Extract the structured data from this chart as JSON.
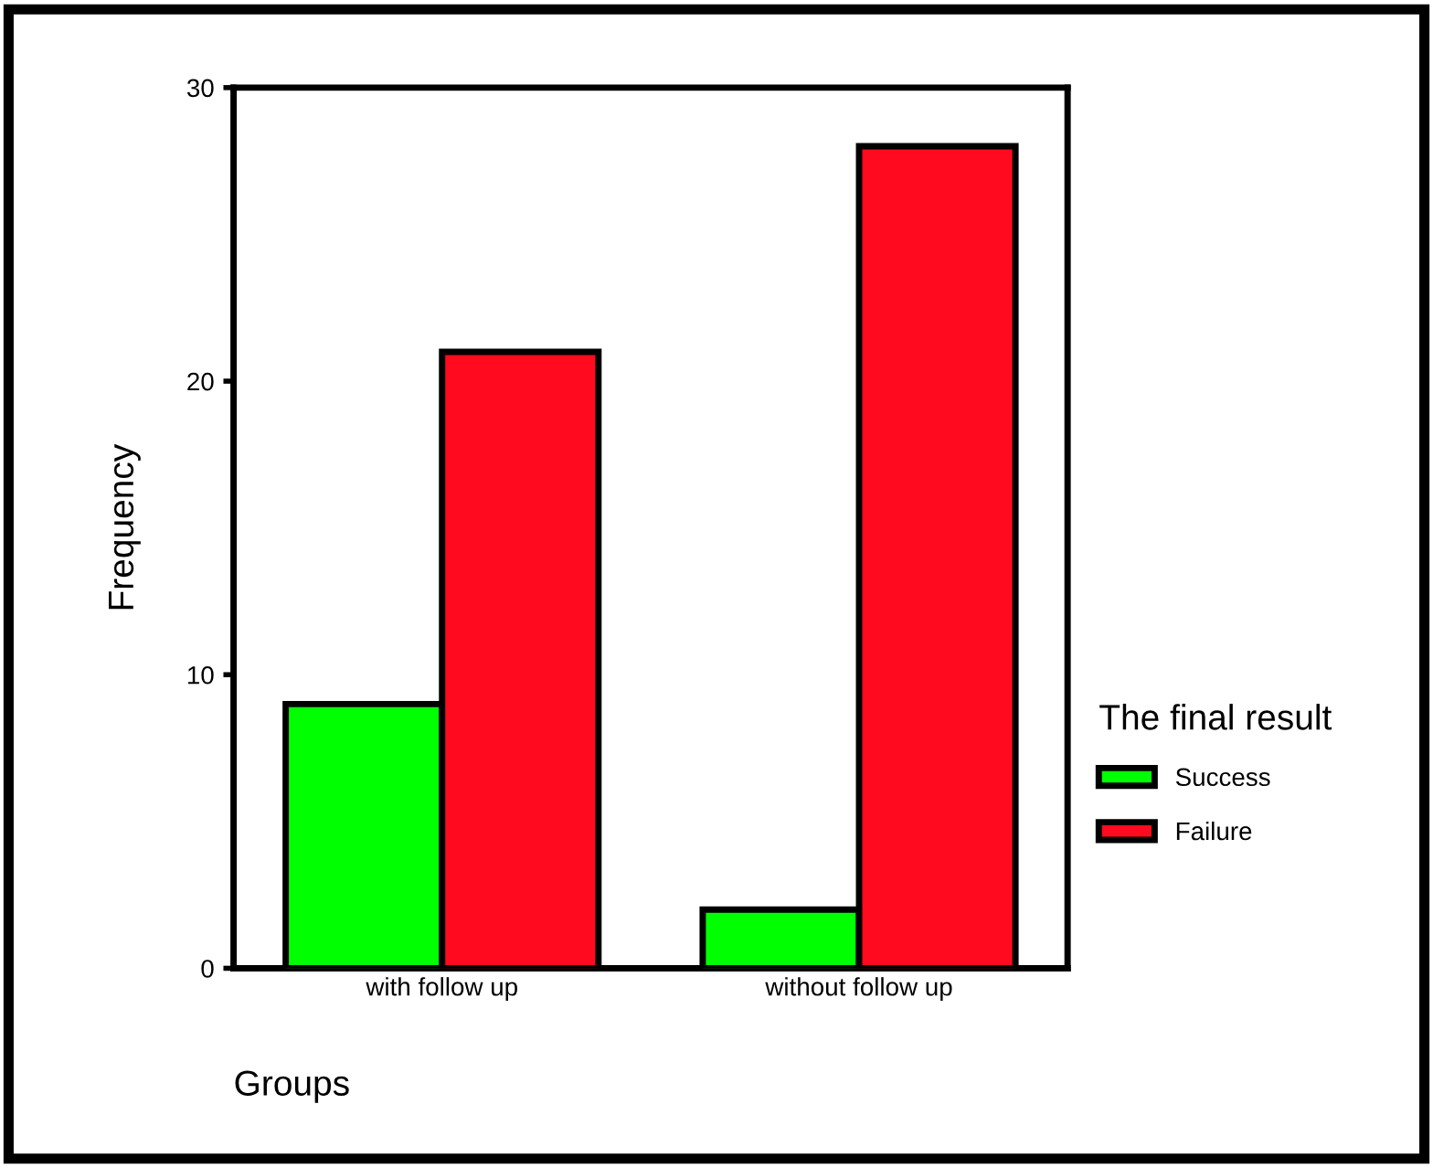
{
  "chart_data": {
    "type": "bar",
    "xlabel": "Groups",
    "ylabel": "Frequency",
    "legend_title": "The final result",
    "categories": [
      "with follow up",
      "without follow up"
    ],
    "series": [
      {
        "name": "Success",
        "color": "#00ff00",
        "values": [
          9,
          2
        ]
      },
      {
        "name": "Failure",
        "color": "#ff0a1e",
        "values": [
          21,
          28
        ]
      }
    ],
    "ylim": [
      0,
      30
    ],
    "yticks": [
      0,
      10,
      20,
      30
    ],
    "grid": false,
    "legend": "right"
  }
}
